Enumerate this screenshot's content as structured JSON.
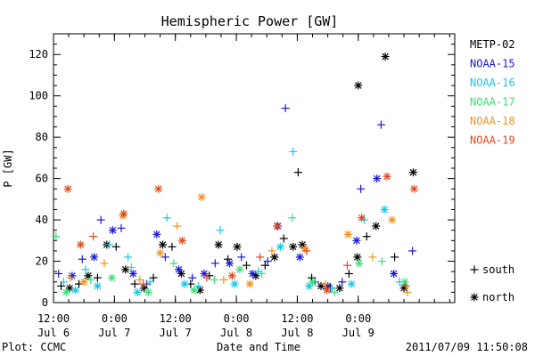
{
  "chart_data": {
    "type": "scatter",
    "title": "Hemispheric Power [GW]",
    "ylabel": "P [GW]",
    "xlabel": "Date and Time",
    "ylim": [
      0,
      130
    ],
    "xlim": [
      "2011-07-06T12:00",
      "2011-07-09T19:00"
    ],
    "yticks": [
      0,
      20,
      40,
      60,
      80,
      100,
      120
    ],
    "xticks": [
      {
        "time": "2011-07-06T12:00",
        "line1": "12:00",
        "line2": "Jul 6"
      },
      {
        "time": "2011-07-07T00:00",
        "line1": "0:00",
        "line2": "Jul 7"
      },
      {
        "time": "2011-07-07T12:00",
        "line1": "12:00",
        "line2": "Jul 7"
      },
      {
        "time": "2011-07-08T00:00",
        "line1": "0:00",
        "line2": "Jul 8"
      },
      {
        "time": "2011-07-08T12:00",
        "line1": "12:00",
        "line2": "Jul 8"
      },
      {
        "time": "2011-07-09T00:00",
        "line1": "0:00",
        "line2": "Jul 9"
      }
    ],
    "marker_legend": [
      {
        "symbol": "+",
        "label": "south"
      },
      {
        "symbol": "*",
        "label": "north"
      }
    ],
    "footer_left": "Plot: CCMC",
    "footer_right": "2011/07/09 11:50:08",
    "series": [
      {
        "name": "METP-02",
        "color": "#000000",
        "points": [
          {
            "x": "2011-07-06T13:30",
            "y": 8,
            "m": "+"
          },
          {
            "x": "2011-07-06T15:10",
            "y": 7,
            "m": "*"
          },
          {
            "x": "2011-07-06T17:00",
            "y": 9,
            "m": "+"
          },
          {
            "x": "2011-07-06T18:50",
            "y": 13,
            "m": "*"
          },
          {
            "x": "2011-07-06T20:40",
            "y": 12,
            "m": "+"
          },
          {
            "x": "2011-07-06T22:30",
            "y": 28,
            "m": "*"
          },
          {
            "x": "2011-07-07T00:20",
            "y": 27,
            "m": "+"
          },
          {
            "x": "2011-07-07T02:10",
            "y": 16,
            "m": "*"
          },
          {
            "x": "2011-07-07T04:00",
            "y": 9,
            "m": "+"
          },
          {
            "x": "2011-07-07T05:50",
            "y": 7,
            "m": "*"
          },
          {
            "x": "2011-07-07T07:40",
            "y": 12,
            "m": "+"
          },
          {
            "x": "2011-07-07T09:30",
            "y": 28,
            "m": "*"
          },
          {
            "x": "2011-07-07T11:20",
            "y": 27,
            "m": "+"
          },
          {
            "x": "2011-07-07T13:10",
            "y": 14,
            "m": "*"
          },
          {
            "x": "2011-07-07T15:00",
            "y": 9,
            "m": "+"
          },
          {
            "x": "2011-07-07T16:50",
            "y": 6,
            "m": "*"
          },
          {
            "x": "2011-07-07T18:40",
            "y": 13,
            "m": "+"
          },
          {
            "x": "2011-07-07T20:30",
            "y": 28,
            "m": "*"
          },
          {
            "x": "2011-07-07T22:20",
            "y": 21,
            "m": "+"
          },
          {
            "x": "2011-07-08T00:10",
            "y": 27,
            "m": "*"
          },
          {
            "x": "2011-07-08T02:00",
            "y": 18,
            "m": "+"
          },
          {
            "x": "2011-07-08T03:50",
            "y": 13,
            "m": "*"
          },
          {
            "x": "2011-07-08T05:40",
            "y": 18,
            "m": "+"
          },
          {
            "x": "2011-07-08T07:30",
            "y": 22,
            "m": "*"
          },
          {
            "x": "2011-07-08T09:20",
            "y": 31,
            "m": "+"
          },
          {
            "x": "2011-07-08T11:10",
            "y": 27,
            "m": "*"
          },
          {
            "x": "2011-07-08T12:10",
            "y": 63,
            "m": "+"
          },
          {
            "x": "2011-07-08T13:00",
            "y": 28,
            "m": "*"
          },
          {
            "x": "2011-07-08T14:50",
            "y": 12,
            "m": "+"
          },
          {
            "x": "2011-07-08T16:40",
            "y": 8,
            "m": "*"
          },
          {
            "x": "2011-07-08T18:30",
            "y": 7,
            "m": "+"
          },
          {
            "x": "2011-07-08T20:20",
            "y": 7,
            "m": "*"
          },
          {
            "x": "2011-07-08T22:10",
            "y": 14,
            "m": "+"
          },
          {
            "x": "2011-07-08T23:50",
            "y": 22,
            "m": "*"
          },
          {
            "x": "2011-07-09T00:00",
            "y": 105,
            "m": "*"
          },
          {
            "x": "2011-07-09T01:40",
            "y": 32,
            "m": "+"
          },
          {
            "x": "2011-07-09T03:30",
            "y": 37,
            "m": "*"
          },
          {
            "x": "2011-07-09T05:20",
            "y": 119,
            "m": "*"
          },
          {
            "x": "2011-07-09T07:10",
            "y": 22,
            "m": "+"
          },
          {
            "x": "2011-07-09T09:00",
            "y": 7,
            "m": "*"
          },
          {
            "x": "2011-07-09T10:50",
            "y": 63,
            "m": "*"
          }
        ]
      },
      {
        "name": "NOAA-15",
        "color": "#1a1ad6",
        "points": [
          {
            "x": "2011-07-06T13:00",
            "y": 14,
            "m": "+"
          },
          {
            "x": "2011-07-06T15:40",
            "y": 13,
            "m": "*"
          },
          {
            "x": "2011-07-06T17:40",
            "y": 21,
            "m": "+"
          },
          {
            "x": "2011-07-06T20:00",
            "y": 22,
            "m": "*"
          },
          {
            "x": "2011-07-06T21:20",
            "y": 40,
            "m": "+"
          },
          {
            "x": "2011-07-06T23:40",
            "y": 35,
            "m": "*"
          },
          {
            "x": "2011-07-07T01:20",
            "y": 36,
            "m": "+"
          },
          {
            "x": "2011-07-07T03:40",
            "y": 14,
            "m": "*"
          },
          {
            "x": "2011-07-07T06:20",
            "y": 9,
            "m": "+"
          },
          {
            "x": "2011-07-07T08:20",
            "y": 33,
            "m": "*"
          },
          {
            "x": "2011-07-07T10:00",
            "y": 22,
            "m": "+"
          },
          {
            "x": "2011-07-07T12:40",
            "y": 16,
            "m": "*"
          },
          {
            "x": "2011-07-07T15:20",
            "y": 12,
            "m": "+"
          },
          {
            "x": "2011-07-07T17:40",
            "y": 14,
            "m": "*"
          },
          {
            "x": "2011-07-07T19:50",
            "y": 19,
            "m": "+"
          },
          {
            "x": "2011-07-07T22:40",
            "y": 19,
            "m": "*"
          },
          {
            "x": "2011-07-08T01:00",
            "y": 22,
            "m": "+"
          },
          {
            "x": "2011-07-08T03:10",
            "y": 14,
            "m": "*"
          },
          {
            "x": "2011-07-08T06:10",
            "y": 20,
            "m": "+"
          },
          {
            "x": "2011-07-08T08:10",
            "y": 37,
            "m": "*"
          },
          {
            "x": "2011-07-08T09:40",
            "y": 94,
            "m": "+"
          },
          {
            "x": "2011-07-08T12:30",
            "y": 22,
            "m": "*"
          },
          {
            "x": "2011-07-08T15:30",
            "y": 10,
            "m": "+"
          },
          {
            "x": "2011-07-08T18:00",
            "y": 8,
            "m": "*"
          },
          {
            "x": "2011-07-08T20:50",
            "y": 10,
            "m": "+"
          },
          {
            "x": "2011-07-08T23:40",
            "y": 30,
            "m": "*"
          },
          {
            "x": "2011-07-09T00:30",
            "y": 55,
            "m": "+"
          },
          {
            "x": "2011-07-09T03:40",
            "y": 60,
            "m": "*"
          },
          {
            "x": "2011-07-09T04:30",
            "y": 86,
            "m": "+"
          },
          {
            "x": "2011-07-09T07:00",
            "y": 14,
            "m": "*"
          },
          {
            "x": "2011-07-09T10:40",
            "y": 25,
            "m": "+"
          }
        ]
      },
      {
        "name": "NOAA-16",
        "color": "#16c8e6",
        "points": [
          {
            "x": "2011-07-06T14:00",
            "y": 10,
            "m": "+"
          },
          {
            "x": "2011-07-06T16:20",
            "y": 6,
            "m": "*"
          },
          {
            "x": "2011-07-06T18:20",
            "y": 16,
            "m": "+"
          },
          {
            "x": "2011-07-06T20:40",
            "y": 8,
            "m": "*"
          },
          {
            "x": "2011-07-06T23:00",
            "y": 28,
            "m": "+"
          },
          {
            "x": "2011-07-07T02:40",
            "y": 22,
            "m": "+"
          },
          {
            "x": "2011-07-07T04:30",
            "y": 5,
            "m": "*"
          },
          {
            "x": "2011-07-07T07:00",
            "y": 10,
            "m": "+"
          },
          {
            "x": "2011-07-07T10:20",
            "y": 41,
            "m": "+"
          },
          {
            "x": "2011-07-07T13:50",
            "y": 9,
            "m": "*"
          },
          {
            "x": "2011-07-07T16:30",
            "y": 8,
            "m": "+"
          },
          {
            "x": "2011-07-07T20:50",
            "y": 35,
            "m": "+"
          },
          {
            "x": "2011-07-07T23:40",
            "y": 9,
            "m": "*"
          },
          {
            "x": "2011-07-08T04:20",
            "y": 15,
            "m": "+"
          },
          {
            "x": "2011-07-08T08:40",
            "y": 27,
            "m": "*"
          },
          {
            "x": "2011-07-08T11:10",
            "y": 73,
            "m": "+"
          },
          {
            "x": "2011-07-08T14:20",
            "y": 8,
            "m": "*"
          },
          {
            "x": "2011-07-08T18:50",
            "y": 7,
            "m": "+"
          },
          {
            "x": "2011-07-08T22:40",
            "y": 9,
            "m": "*"
          },
          {
            "x": "2011-07-09T01:10",
            "y": 40,
            "m": "+"
          },
          {
            "x": "2011-07-09T05:10",
            "y": 45,
            "m": "*"
          },
          {
            "x": "2011-07-09T08:10",
            "y": 10,
            "m": "+"
          }
        ]
      },
      {
        "name": "NOAA-17",
        "color": "#3de07a",
        "points": [
          {
            "x": "2011-07-06T12:30",
            "y": 32,
            "m": "+"
          },
          {
            "x": "2011-07-06T14:30",
            "y": 5,
            "m": "*"
          },
          {
            "x": "2011-07-06T19:20",
            "y": 11,
            "m": "+"
          },
          {
            "x": "2011-07-06T23:30",
            "y": 12,
            "m": "*"
          },
          {
            "x": "2011-07-07T03:20",
            "y": 17,
            "m": "+"
          },
          {
            "x": "2011-07-07T06:40",
            "y": 5,
            "m": "*"
          },
          {
            "x": "2011-07-07T11:40",
            "y": 19,
            "m": "+"
          },
          {
            "x": "2011-07-07T15:40",
            "y": 6,
            "m": "*"
          },
          {
            "x": "2011-07-07T19:40",
            "y": 11,
            "m": "+"
          },
          {
            "x": "2011-07-08T00:40",
            "y": 16,
            "m": "*"
          },
          {
            "x": "2011-07-08T05:00",
            "y": 14,
            "m": "+"
          },
          {
            "x": "2011-07-08T11:00",
            "y": 41,
            "m": "+"
          },
          {
            "x": "2011-07-08T15:00",
            "y": 10,
            "m": "*"
          },
          {
            "x": "2011-07-08T19:20",
            "y": 5,
            "m": "+"
          },
          {
            "x": "2011-07-09T00:10",
            "y": 19,
            "m": "*"
          },
          {
            "x": "2011-07-09T04:40",
            "y": 20,
            "m": "+"
          },
          {
            "x": "2011-07-09T09:10",
            "y": 10,
            "m": "*"
          }
        ]
      },
      {
        "name": "NOAA-18",
        "color": "#f5911e",
        "points": [
          {
            "x": "2011-07-06T15:20",
            "y": 12,
            "m": "+"
          },
          {
            "x": "2011-07-06T18:00",
            "y": 10,
            "m": "*"
          },
          {
            "x": "2011-07-06T22:00",
            "y": 19,
            "m": "+"
          },
          {
            "x": "2011-07-07T01:40",
            "y": 42,
            "m": "*"
          },
          {
            "x": "2011-07-07T05:00",
            "y": 11,
            "m": "+"
          },
          {
            "x": "2011-07-07T09:00",
            "y": 24,
            "m": "*"
          },
          {
            "x": "2011-07-07T12:20",
            "y": 37,
            "m": "+"
          },
          {
            "x": "2011-07-07T17:10",
            "y": 51,
            "m": "*"
          },
          {
            "x": "2011-07-07T21:30",
            "y": 11,
            "m": "+"
          },
          {
            "x": "2011-07-08T02:40",
            "y": 9,
            "m": "*"
          },
          {
            "x": "2011-07-08T07:00",
            "y": 25,
            "m": "+"
          },
          {
            "x": "2011-07-08T13:30",
            "y": 26,
            "m": "*"
          },
          {
            "x": "2011-07-08T17:30",
            "y": 9,
            "m": "+"
          },
          {
            "x": "2011-07-08T22:00",
            "y": 33,
            "m": "*"
          },
          {
            "x": "2011-07-09T02:50",
            "y": 22,
            "m": "+"
          },
          {
            "x": "2011-07-09T06:40",
            "y": 40,
            "m": "*"
          },
          {
            "x": "2011-07-09T09:40",
            "y": 5,
            "m": "+"
          }
        ]
      },
      {
        "name": "NOAA-19",
        "color": "#e04a1c",
        "points": [
          {
            "x": "2011-07-06T14:50",
            "y": 55,
            "m": "*"
          },
          {
            "x": "2011-07-06T17:20",
            "y": 28,
            "m": "*"
          },
          {
            "x": "2011-07-06T19:50",
            "y": 32,
            "m": "+"
          },
          {
            "x": "2011-07-07T01:50",
            "y": 43,
            "m": "*"
          },
          {
            "x": "2011-07-07T05:40",
            "y": 9,
            "m": "+"
          },
          {
            "x": "2011-07-07T08:40",
            "y": 55,
            "m": "*"
          },
          {
            "x": "2011-07-07T13:20",
            "y": 30,
            "m": "*"
          },
          {
            "x": "2011-07-07T18:10",
            "y": 12,
            "m": "+"
          },
          {
            "x": "2011-07-07T23:10",
            "y": 13,
            "m": "*"
          },
          {
            "x": "2011-07-08T04:40",
            "y": 22,
            "m": "+"
          },
          {
            "x": "2011-07-08T08:00",
            "y": 37,
            "m": "*"
          },
          {
            "x": "2011-07-08T13:50",
            "y": 25,
            "m": "+"
          },
          {
            "x": "2011-07-08T17:50",
            "y": 6,
            "m": "*"
          },
          {
            "x": "2011-07-08T21:50",
            "y": 18,
            "m": "+"
          },
          {
            "x": "2011-07-09T00:40",
            "y": 41,
            "m": "*"
          },
          {
            "x": "2011-07-09T05:40",
            "y": 61,
            "m": "*"
          },
          {
            "x": "2011-07-09T09:20",
            "y": 8,
            "m": "+"
          },
          {
            "x": "2011-07-09T11:00",
            "y": 55,
            "m": "*"
          }
        ]
      }
    ]
  }
}
